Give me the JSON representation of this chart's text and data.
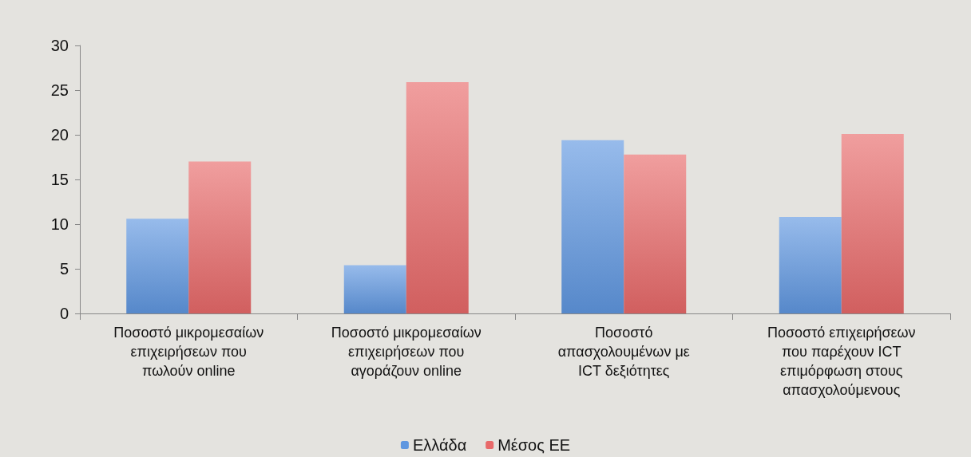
{
  "chart_data": {
    "type": "bar",
    "categories": [
      "Ποσοστό μικρομεσαίων επιχειρήσεων που πωλούν online",
      "Ποσοστό μικρομεσαίων επιχειρήσεων που αγοράζουν online",
      "Ποσοστό απασχολουμένων με ICT δεξιότητες",
      "Ποσοστό επιχειρήσεων που παρέχουν ICT επιμόρφωση στους απασχολούμενους"
    ],
    "series": [
      {
        "name": "Ελλάδα",
        "color": "#5f97e0",
        "values": [
          10.6,
          5.4,
          19.4,
          10.8
        ]
      },
      {
        "name": "Μέσος ΕΕ",
        "color": "#e86a6a",
        "values": [
          17.0,
          25.9,
          17.8,
          20.1
        ]
      }
    ],
    "ylim": [
      0,
      30
    ],
    "yticks": [
      0,
      5,
      10,
      15,
      20,
      25,
      30
    ],
    "grid": false,
    "legend": "bottom"
  }
}
